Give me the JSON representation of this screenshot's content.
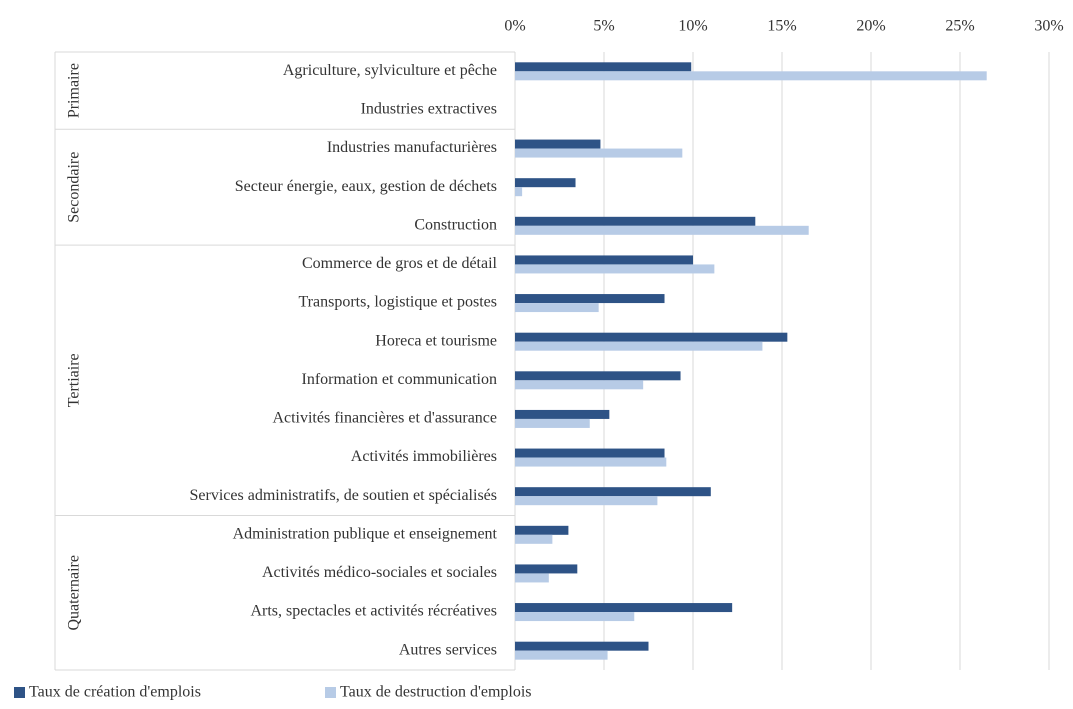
{
  "chart_data": {
    "type": "bar",
    "orientation": "horizontal",
    "groups": [
      {
        "label": "Primaire",
        "categories": [
          "Agriculture, sylviculture et pêche",
          "Industries extractives"
        ]
      },
      {
        "label": "Secondaire",
        "categories": [
          "Industries manufacturières",
          "Secteur énergie, eaux, gestion de déchets",
          "Construction"
        ]
      },
      {
        "label": "Tertiaire",
        "categories": [
          "Commerce de gros et de détail",
          "Transports, logistique et postes",
          "Horeca et tourisme",
          "Information et communication",
          "Activités financières et d'assurance",
          "Activités immobilières",
          "Services administratifs, de soutien et spécialisés"
        ]
      },
      {
        "label": "Quaternaire",
        "categories": [
          "Administration publique et enseignement",
          "Activités médico-sociales et sociales",
          "Arts, spectacles et activités récréatives ",
          "Autres services"
        ]
      }
    ],
    "series": [
      {
        "name": "Taux de création d'emplois",
        "color": "#2e5386",
        "values": [
          9.9,
          0,
          4.8,
          3.4,
          13.5,
          10.0,
          8.4,
          15.3,
          9.3,
          5.3,
          8.4,
          11.0,
          3.0,
          3.5,
          12.2,
          7.5
        ]
      },
      {
        "name": "Taux de destruction d'emplois",
        "color": "#b7cbe6",
        "values": [
          26.5,
          0,
          9.4,
          0.4,
          16.5,
          11.2,
          4.7,
          13.9,
          7.2,
          4.2,
          8.5,
          8.0,
          2.1,
          1.9,
          6.7,
          5.2
        ]
      }
    ],
    "xlim": [
      0,
      30
    ],
    "xticks": [
      {
        "value": 0,
        "label": "0%"
      },
      {
        "value": 5,
        "label": "5%"
      },
      {
        "value": 10,
        "label": "10%"
      },
      {
        "value": 15,
        "label": "15%"
      },
      {
        "value": 20,
        "label": "20%"
      },
      {
        "value": 25,
        "label": "25%"
      },
      {
        "value": 30,
        "label": "30%"
      }
    ],
    "grid": true,
    "legend": "bottom-left"
  }
}
